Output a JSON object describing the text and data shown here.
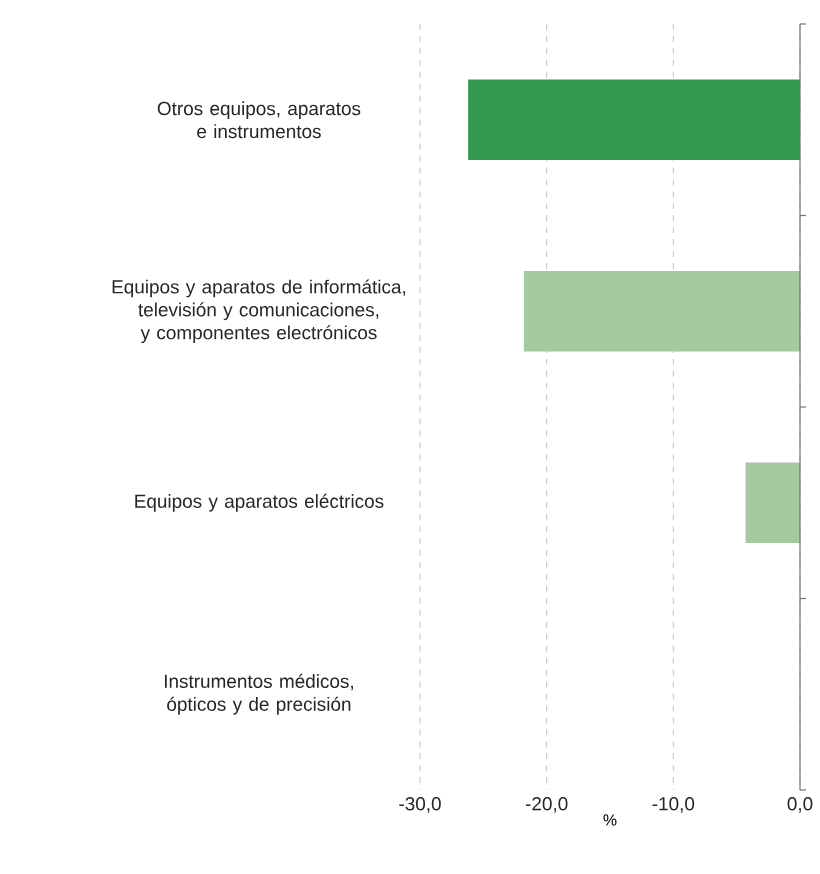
{
  "chart_data": {
    "type": "bar",
    "orientation": "horizontal",
    "xlabel": "%",
    "categories": [
      "Otros equipos, aparatos e instrumentos",
      "Equipos y aparatos de informática, televisión y comunicaciones, y componentes electrónicos",
      "Equipos y aparatos eléctricos",
      "Instrumentos médicos, ópticos y de precisión"
    ],
    "values": [
      -26.2,
      -21.8,
      -4.3,
      null
    ],
    "colors": [
      "#339950",
      "#a5c9a0",
      "#a5c9a0",
      "#a5c9a0"
    ],
    "xlim": [
      -30,
      0
    ],
    "xticks": [
      {
        "value": -30,
        "label": "-30,0"
      },
      {
        "value": -20,
        "label": "-20,0"
      },
      {
        "value": -10,
        "label": "-10,0"
      },
      {
        "value": 0,
        "label": "0,0"
      }
    ],
    "grid": "x"
  }
}
